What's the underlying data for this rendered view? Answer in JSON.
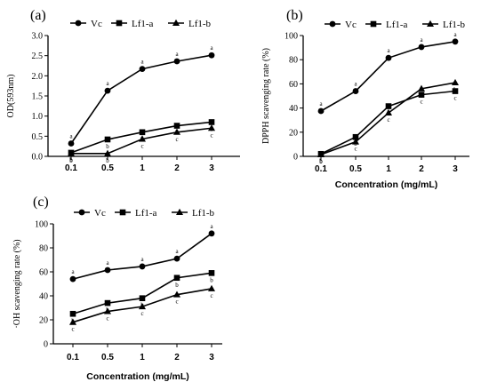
{
  "chart_data": [
    {
      "type": "line",
      "panel_label": "(a)",
      "title": "",
      "xlabel": "",
      "ylabel": "OD(593nm)",
      "categories": [
        "0.1",
        "0.5",
        "1",
        "2",
        "3"
      ],
      "ylim": [
        0,
        3.0
      ],
      "yticks": [
        "0.0",
        "0.5",
        "1.0",
        "1.5",
        "2.0",
        "2.5",
        "3.0"
      ],
      "grid": false,
      "legend_position": "top",
      "series": [
        {
          "name": "Vc",
          "marker": "circle",
          "values": [
            0.32,
            1.63,
            2.17,
            2.36,
            2.51
          ],
          "labels": [
            "a",
            "a",
            "a",
            "a",
            "a"
          ]
        },
        {
          "name": "Lf1-a",
          "marker": "square",
          "values": [
            0.09,
            0.42,
            0.6,
            0.76,
            0.85
          ],
          "labels": [
            "b",
            "b",
            "b",
            "b",
            "b"
          ]
        },
        {
          "name": "Lf1-b",
          "marker": "triangle",
          "values": [
            0.07,
            0.07,
            0.43,
            0.6,
            0.7
          ],
          "labels": [
            "b",
            "b",
            "c",
            "c",
            "c"
          ]
        }
      ]
    },
    {
      "type": "line",
      "panel_label": "(b)",
      "title": "",
      "xlabel": "Concentration (mg/mL)",
      "ylabel": "DPPH scavenging rate (%)",
      "categories": [
        "0.1",
        "0.5",
        "1",
        "2",
        "3"
      ],
      "ylim": [
        0,
        100
      ],
      "yticks": [
        "0",
        "20",
        "40",
        "60",
        "80",
        "100"
      ],
      "grid": false,
      "legend_position": "top",
      "series": [
        {
          "name": "Vc",
          "marker": "circle",
          "values": [
            37.5,
            54,
            81.5,
            90.5,
            95
          ],
          "labels": [
            "a",
            "a",
            "a",
            "a",
            "a"
          ]
        },
        {
          "name": "Lf1-a",
          "marker": "square",
          "values": [
            2,
            16,
            41.5,
            51,
            54
          ],
          "labels": [
            "b",
            "b",
            "b",
            "c",
            "c"
          ]
        },
        {
          "name": "Lf1-b",
          "marker": "triangle",
          "values": [
            1.5,
            12,
            36,
            56,
            61
          ],
          "labels": [
            "b",
            "c",
            "c",
            "b",
            "b"
          ]
        }
      ]
    },
    {
      "type": "line",
      "panel_label": "(c)",
      "title": "",
      "xlabel": "Concentration (mg/mL)",
      "ylabel": "·OH scavenging rate (%)",
      "categories": [
        "0.1",
        "0.5",
        "1",
        "2",
        "3"
      ],
      "ylim": [
        0,
        100
      ],
      "yticks": [
        "0",
        "20",
        "40",
        "60",
        "80",
        "100"
      ],
      "grid": false,
      "legend_position": "top",
      "series": [
        {
          "name": "Vc",
          "marker": "circle",
          "values": [
            54,
            61.5,
            64.5,
            71,
            92
          ],
          "labels": [
            "a",
            "a",
            "a",
            "a",
            "a"
          ]
        },
        {
          "name": "Lf1-a",
          "marker": "square",
          "values": [
            25,
            34,
            38,
            55,
            59
          ],
          "labels": [
            "b",
            "b",
            "b",
            "b",
            "b"
          ]
        },
        {
          "name": "Lf1-b",
          "marker": "triangle",
          "values": [
            18,
            27,
            31,
            41,
            46
          ],
          "labels": [
            "c",
            "c",
            "c",
            "c",
            "c"
          ]
        }
      ]
    }
  ]
}
